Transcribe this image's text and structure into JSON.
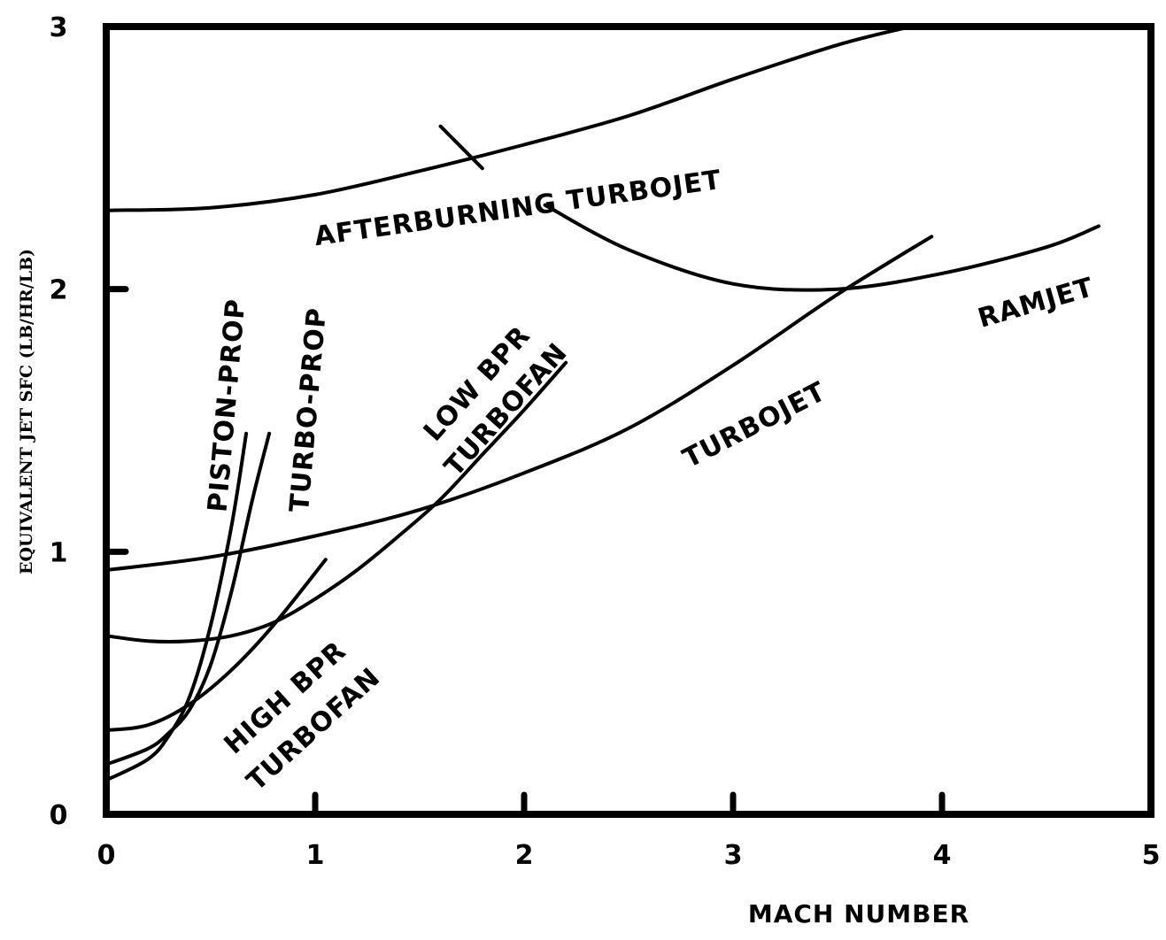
{
  "chart_data": {
    "type": "line",
    "title": "",
    "xlabel": "MACH NUMBER",
    "ylabel": "EQUIVALENT JET SFC (LB/HR/LB)",
    "xlim": [
      0,
      5
    ],
    "ylim": [
      0,
      3
    ],
    "xticks": [
      "0",
      "1",
      "2",
      "3",
      "4",
      "5"
    ],
    "yticks": [
      "0",
      "1",
      "2",
      "3"
    ],
    "grid": false,
    "legend": "none",
    "series": [
      {
        "name": "AFTERBURNING TURBOJET",
        "label_lines": [
          "AFTERBURNING TURBOJET"
        ],
        "x": [
          0,
          0.5,
          1.0,
          1.5,
          2.0,
          2.5,
          3.0,
          3.5,
          3.85
        ],
        "y": [
          2.3,
          2.31,
          2.36,
          2.45,
          2.55,
          2.66,
          2.8,
          2.93,
          3.0
        ]
      },
      {
        "name": "RAMJET",
        "label_lines": [
          "RAMJET"
        ],
        "x": [
          1.6,
          1.8
        ],
        "y": [
          2.62,
          2.46
        ]
      },
      {
        "name": "RAMJET",
        "label_lines": [],
        "x": [
          2.1,
          2.5,
          3.0,
          3.5,
          4.0,
          4.5,
          4.75
        ],
        "y": [
          2.32,
          2.15,
          2.02,
          2.0,
          2.06,
          2.16,
          2.24
        ]
      },
      {
        "name": "TURBOJET",
        "label_lines": [
          "TURBOJET"
        ],
        "x": [
          0,
          0.5,
          1.0,
          1.5,
          2.0,
          2.5,
          3.0,
          3.5,
          3.95
        ],
        "y": [
          0.93,
          0.98,
          1.06,
          1.16,
          1.3,
          1.47,
          1.71,
          1.98,
          2.2
        ]
      },
      {
        "name": "LOW BPR TURBOFAN",
        "label_lines": [
          "LOW BPR",
          "TURBOFAN"
        ],
        "x": [
          0,
          0.2,
          0.4,
          0.6,
          0.8,
          1.0,
          1.2,
          1.4,
          1.6,
          1.8,
          2.0,
          2.2
        ],
        "y": [
          0.68,
          0.66,
          0.66,
          0.68,
          0.73,
          0.82,
          0.93,
          1.06,
          1.2,
          1.37,
          1.54,
          1.72
        ]
      },
      {
        "name": "HIGH BPR TURBOFAN",
        "label_lines": [
          "HIGH BPR",
          "TURBOFAN"
        ],
        "x": [
          0,
          0.2,
          0.4,
          0.6,
          0.8,
          1.05
        ],
        "y": [
          0.32,
          0.34,
          0.42,
          0.55,
          0.72,
          0.97
        ]
      },
      {
        "name": "PISTON-PROP",
        "label_lines": [
          "PISTON-PROP"
        ],
        "x": [
          0,
          0.2,
          0.3,
          0.4,
          0.5,
          0.6,
          0.67
        ],
        "y": [
          0.13,
          0.21,
          0.3,
          0.45,
          0.72,
          1.1,
          1.45
        ]
      },
      {
        "name": "TURBO-PROP",
        "label_lines": [
          "TURBO-PROP"
        ],
        "x": [
          0,
          0.2,
          0.3,
          0.4,
          0.5,
          0.6,
          0.7,
          0.78
        ],
        "y": [
          0.19,
          0.25,
          0.31,
          0.4,
          0.57,
          0.85,
          1.2,
          1.45
        ]
      }
    ]
  }
}
